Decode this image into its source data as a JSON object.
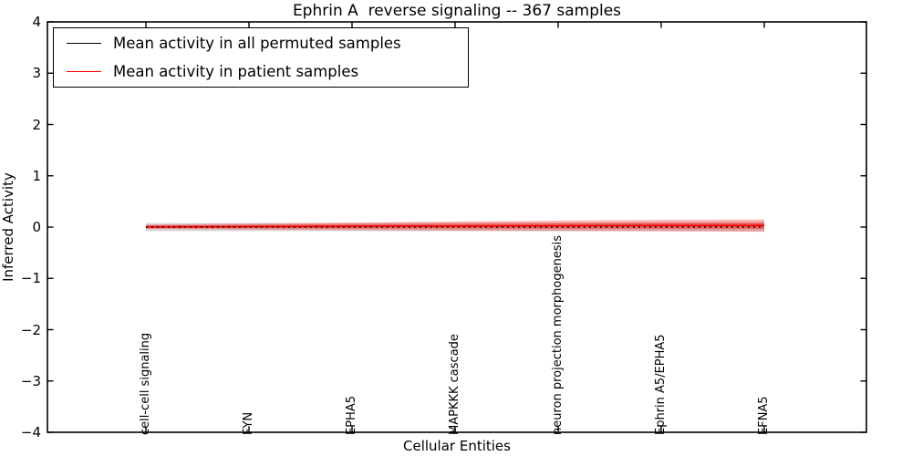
{
  "figure": {
    "background": "#ffffff",
    "axis_color": "#000000"
  },
  "chart_data": {
    "type": "line",
    "title": "Ephrin A  reverse signaling -- 367 samples",
    "xlabel": "Cellular Entities",
    "ylabel": "Inferred Activity",
    "ylim": [
      -4,
      4
    ],
    "ytick_values": [
      4,
      3,
      2,
      1,
      0,
      -1,
      -2,
      -3,
      -4
    ],
    "ytick_labels": [
      "4",
      "3",
      "2",
      "1",
      "0",
      "−1",
      "−2",
      "−3",
      "−4"
    ],
    "categories": [
      "cell-cell signaling",
      "FYN",
      "EPHA5",
      "MAPKKK cascade",
      "neuron projection morphogenesis",
      "Ephrin A5/EPHA5",
      "EFNA5"
    ],
    "grid": false,
    "legend_position": "upper left",
    "series": [
      {
        "name": "Mean activity in all permuted samples",
        "color": "#000000",
        "linestyle": "dashed",
        "values": [
          0,
          0,
          0,
          0,
          0,
          0,
          0
        ],
        "band_half_width": [
          0.08,
          0.08,
          0.08,
          0.08,
          0.08,
          0.08,
          0.08
        ],
        "band_color": "#999999",
        "band_opacity": 0.35
      },
      {
        "name": "Mean activity in patient samples",
        "color": "#ff0000",
        "linestyle": "solid",
        "values": [
          0.005,
          0.01,
          0.015,
          0.02,
          0.025,
          0.03,
          0.03
        ],
        "band_half_width": [
          0.045,
          0.06,
          0.075,
          0.09,
          0.1,
          0.11,
          0.12
        ],
        "band_color": "#ee2222",
        "band_opacity": 0.33
      }
    ]
  }
}
